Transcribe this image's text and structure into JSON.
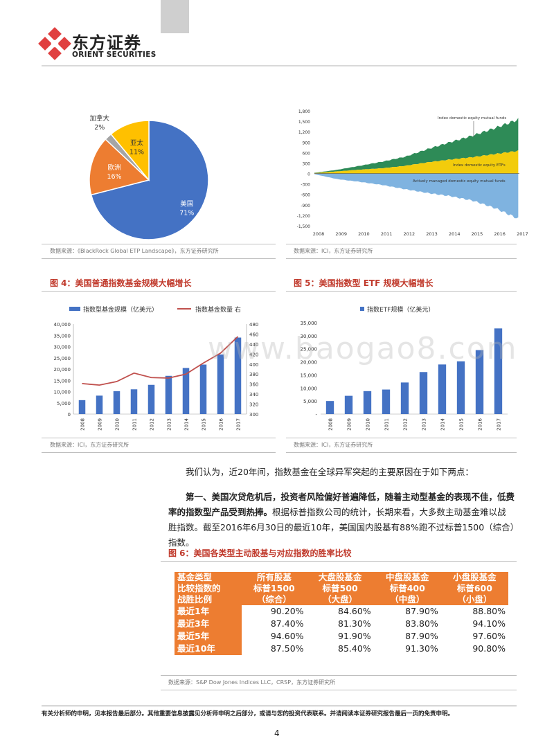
{
  "header": {
    "logo_cn": "东方证券",
    "logo_en": "ORIENT SECURITIES"
  },
  "colors": {
    "brand_red": "#e04040",
    "accent_orange": "#ed7d31",
    "bar_blue": "#4472c4",
    "line_red": "#c0504d"
  },
  "pie": {
    "chart_data": {
      "type": "pie",
      "labels": [
        "美国",
        "欧洲",
        "加拿大",
        "亚太"
      ],
      "values": [
        71,
        16,
        2,
        11
      ],
      "value_labels": [
        "71%",
        "16%",
        "2%",
        "11%"
      ],
      "colors": [
        "#4472c4",
        "#ed7d31",
        "#a5a5a5",
        "#ffc000"
      ]
    },
    "source": "数据来源：《BlackRock Global ETP Landscape》，东方证券研究所"
  },
  "area": {
    "chart_data": {
      "type": "area",
      "x": [
        2008,
        2009,
        2010,
        2011,
        2012,
        2013,
        2014,
        2015,
        2016,
        2017
      ],
      "ylim": [
        -1500,
        1800
      ],
      "yticks": [
        "1,800",
        "1,500",
        "1,200",
        "900",
        "600",
        "300",
        "0",
        "-300",
        "-600",
        "-900",
        "-1,200",
        "-1,500"
      ],
      "series": [
        {
          "name": "Index domestic equity mutual funds",
          "values": [
            10,
            45,
            110,
            190,
            260,
            380,
            500,
            620,
            750,
            900
          ]
        },
        {
          "name": "Index domestic equity ETFs",
          "values": [
            10,
            60,
            110,
            150,
            220,
            320,
            400,
            470,
            560,
            650
          ]
        },
        {
          "name": "Actively managed domestic equity mutual funds",
          "values": [
            -20,
            -160,
            -240,
            -330,
            -450,
            -560,
            -650,
            -780,
            -1000,
            -1300
          ]
        }
      ],
      "annotations": [
        "Index domestic equity mutual funds",
        "Index domestic equity ETFs",
        "Actively managed domestic equity mutual funds"
      ]
    },
    "source": "数据来源：ICI，东方证券研究所"
  },
  "fig4": {
    "title": "图 4：美国普通指数基金规模大幅增长",
    "chart_data": {
      "type": "bar",
      "categories": [
        "2008",
        "2009",
        "2010",
        "2011",
        "2012",
        "2013",
        "2014",
        "2015",
        "2016",
        "2017"
      ],
      "series": [
        {
          "name": "指数型基金规模（亿美元）",
          "values": [
            6200,
            8200,
            10200,
            11000,
            13000,
            17000,
            20500,
            22000,
            26500,
            34000
          ]
        },
        {
          "name": "指数基金数量 右",
          "values": [
            361,
            358,
            365,
            382,
            373,
            372,
            380,
            402,
            422,
            455
          ]
        }
      ],
      "ylim": [
        0,
        40000
      ],
      "yticks": [
        "0",
        "5,000",
        "10,000",
        "15,000",
        "20,000",
        "25,000",
        "30,000",
        "35,000",
        "40,000"
      ],
      "y2lim": [
        300,
        480
      ],
      "y2ticks": [
        "300",
        "320",
        "340",
        "360",
        "380",
        "400",
        "420",
        "440",
        "460",
        "480"
      ]
    },
    "source": "数据来源：ICI，东方证券研究所"
  },
  "fig5": {
    "title": "图 5：美国指数型 ETF 规模大幅增长",
    "chart_data": {
      "type": "bar",
      "categories": [
        "2008",
        "2009",
        "2010",
        "2011",
        "2012",
        "2013",
        "2014",
        "2015",
        "2016",
        "2017"
      ],
      "series": [
        {
          "name": "指数ETF规模（亿美元）",
          "values": [
            5000,
            7000,
            8800,
            9400,
            12100,
            16100,
            19000,
            20200,
            24500,
            32800
          ]
        }
      ],
      "ylim": [
        0,
        35000
      ],
      "yticks": [
        "-",
        "5,000",
        "10,000",
        "15,000",
        "20,000",
        "25,000",
        "30,000",
        "35,000"
      ]
    },
    "source": "数据来源：ICI，东方证券研究所"
  },
  "text": {
    "para1": "我们认为，近20年间，指数基金在全球异军突起的主要原因在于如下两点：",
    "para2_bold": "第一、美国次贷危机后，投资者风险偏好普遍降低，随着主动型基金的表现不佳，低费率的指数型产品受到热捧。",
    "para2_rest": "根据标普指数公司的统计，长期来看，大多数主动基金难以战胜指数。截至2016年6月30日的最近10年，美国国内股基有88%跑不过标普1500（综合）指数。"
  },
  "fig6": {
    "title": "图 6：美国各类型主动股基与对应指数的胜率比较",
    "headers": [
      [
        "基金类型",
        "比较指数的",
        "战胜比例"
      ],
      [
        "所有股基",
        "标普1500",
        "（综合）"
      ],
      [
        "大盘股基金",
        "标普500",
        "（大盘）"
      ],
      [
        "中盘股基金",
        "标普400",
        "（中盘）"
      ],
      [
        "小盘股基金",
        "标普600",
        "（小盘）"
      ]
    ],
    "rows": [
      {
        "label": "最近1年",
        "values": [
          "90.20%",
          "84.60%",
          "87.90%",
          "88.80%"
        ]
      },
      {
        "label": "最近3年",
        "values": [
          "87.40%",
          "81.30%",
          "83.80%",
          "94.10%"
        ]
      },
      {
        "label": "最近5年",
        "values": [
          "94.60%",
          "91.90%",
          "87.90%",
          "97.60%"
        ]
      },
      {
        "label": "最近10年",
        "values": [
          "87.50%",
          "85.40%",
          "91.30%",
          "90.80%"
        ]
      }
    ],
    "source": "数据来源：S&P Dow Jones Indices LLC，CRSP，东方证券研究所"
  },
  "footer": {
    "disclaimer": "有关分析师的申明，见本报告最后部分。其他重要信息披露见分析师申明之后部分，或请与您的投资代表联系。并请阅读本证券研究报告最后一页的免责申明。",
    "page": "4"
  },
  "watermark": "www.baogao8.com"
}
